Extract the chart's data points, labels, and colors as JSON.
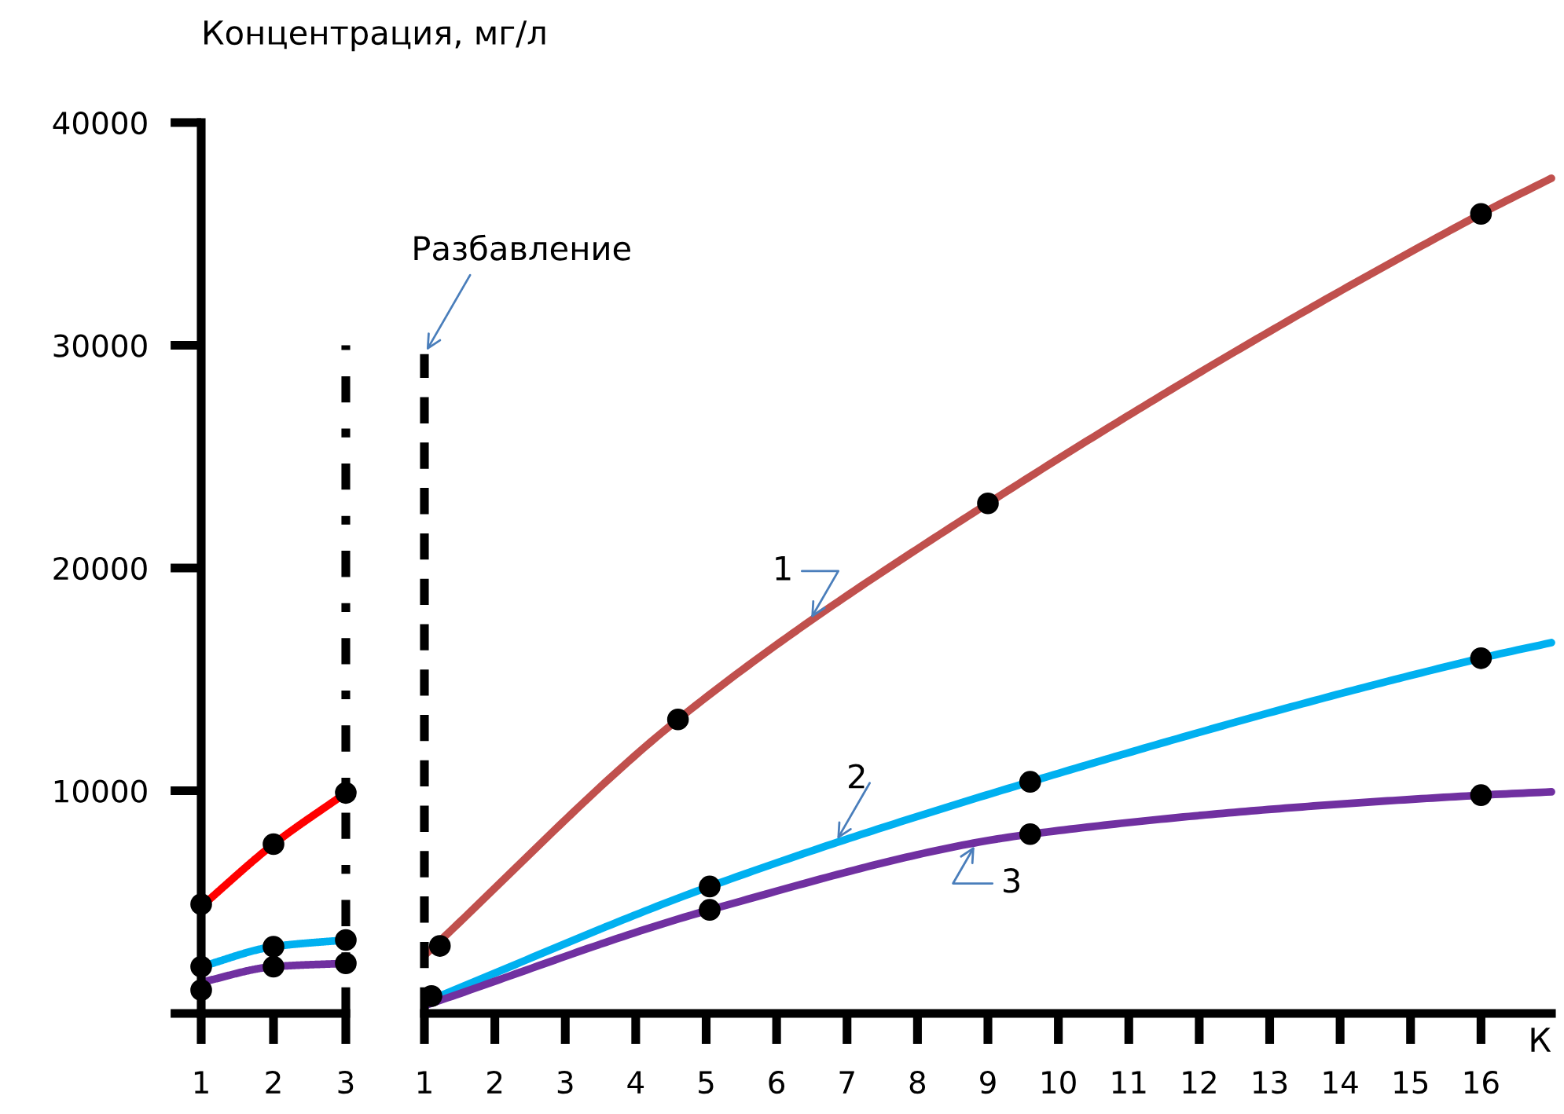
{
  "chart_data": [
    {
      "type": "line",
      "ylabel": "Концентрация, мг/л",
      "xlim": [
        1,
        3
      ],
      "xticks": [
        1,
        2,
        3
      ],
      "ylim": [
        0,
        40000
      ],
      "yticks": [
        {
          "value": 0,
          "label": null
        },
        10000,
        20000,
        30000,
        40000
      ],
      "grid": false,
      "legend": false,
      "line_style": "solid",
      "ref_lines": [
        {
          "axis": "x",
          "value": 3,
          "line_style": "dashdot",
          "color": "#000000"
        }
      ],
      "series": [
        {
          "color": "#ff0000",
          "x": [
            1,
            2,
            3
          ],
          "values": [
            4800,
            7600,
            9900
          ]
        },
        {
          "color": "#00b0f0",
          "x": [
            1,
            2,
            3
          ],
          "values": [
            2100,
            3000,
            3300
          ]
        },
        {
          "color": "#7030a0",
          "x": [
            1,
            2,
            3
          ],
          "values": [
            1400,
            2100,
            2250
          ]
        },
        {
          "type": "scatter",
          "color": "#000000",
          "marker": "circle",
          "x": [
            1,
            2,
            3,
            1,
            2,
            3,
            1,
            2,
            3
          ],
          "values": [
            4900,
            7600,
            9900,
            2100,
            3000,
            3300,
            1050,
            2100,
            2250
          ]
        }
      ]
    },
    {
      "type": "line",
      "xlabel": "К",
      "xlim": [
        1,
        17
      ],
      "xticks": [
        1,
        2,
        3,
        4,
        5,
        6,
        7,
        8,
        9,
        10,
        11,
        12,
        13,
        14,
        15,
        16
      ],
      "ylim": [
        0,
        40000
      ],
      "tick_labels": "x",
      "grid": false,
      "legend": false,
      "line_style": "solid",
      "ref_lines": [
        {
          "axis": "x",
          "value": 1,
          "line_style": "dashed",
          "color": "#000000",
          "label": "Разбавление"
        }
      ],
      "series": [
        {
          "name": "1",
          "color": "#c0504d",
          "x": [
            1,
            4.6,
            9,
            16,
            17
          ],
          "values": [
            2600,
            13200,
            22900,
            35900,
            37500
          ]
        },
        {
          "name": "2",
          "color": "#00b0f0",
          "x": [
            1,
            5.05,
            9.6,
            16,
            17
          ],
          "values": [
            500,
            5700,
            10400,
            15950,
            16650
          ]
        },
        {
          "name": "3",
          "color": "#7030a0",
          "x": [
            1,
            5.05,
            9.6,
            16,
            17
          ],
          "values": [
            350,
            4650,
            8050,
            9800,
            9950
          ]
        },
        {
          "type": "scatter",
          "color": "#000000",
          "marker": "circle",
          "x": [
            1.22,
            4.6,
            9,
            16,
            1.1,
            5.05,
            9.6,
            16,
            5.05,
            9.6,
            16
          ],
          "values": [
            3030,
            13200,
            22900,
            35900,
            780,
            5700,
            10400,
            15950,
            4650,
            8050,
            9800
          ]
        }
      ]
    }
  ]
}
